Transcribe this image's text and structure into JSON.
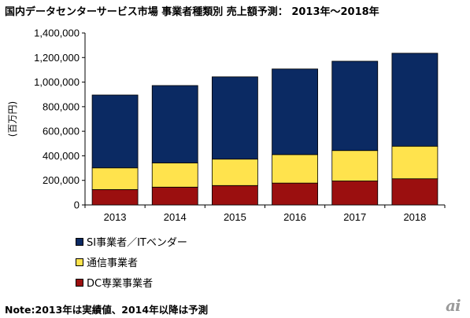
{
  "title": "国内データセンターサービス市場 事業者種類別 売上額予測： 2013年～2018年",
  "note": "Note:2013年は実績値、2014年以降は予測",
  "logo_text": "ai",
  "chart_data": {
    "type": "bar",
    "stacked": true,
    "categories": [
      "2013",
      "2014",
      "2015",
      "2016",
      "2017",
      "2018"
    ],
    "ylabel": "(百万円)",
    "ylim": [
      0,
      1400000
    ],
    "yticks": [
      0,
      200000,
      400000,
      600000,
      800000,
      1000000,
      1200000,
      1400000
    ],
    "ytick_labels": [
      "0",
      "200,000",
      "400,000",
      "600,000",
      "800,000",
      "1,000,000",
      "1,200,000",
      "1,400,000"
    ],
    "grid": false,
    "legend_position": "bottom-left",
    "series": [
      {
        "name": "DC専業事業者",
        "color": "#9b0f0f",
        "values": [
          125000,
          145000,
          158000,
          178000,
          195000,
          213000
        ]
      },
      {
        "name": "通信事業者",
        "color": "#ffe34d",
        "values": [
          177000,
          197000,
          215000,
          232000,
          248000,
          265000
        ]
      },
      {
        "name": "SI事業者／ITベンダー",
        "color": "#0b2a63",
        "values": [
          593000,
          630000,
          670000,
          697000,
          727000,
          757000
        ]
      }
    ],
    "legend_order": [
      2,
      1,
      0
    ]
  }
}
